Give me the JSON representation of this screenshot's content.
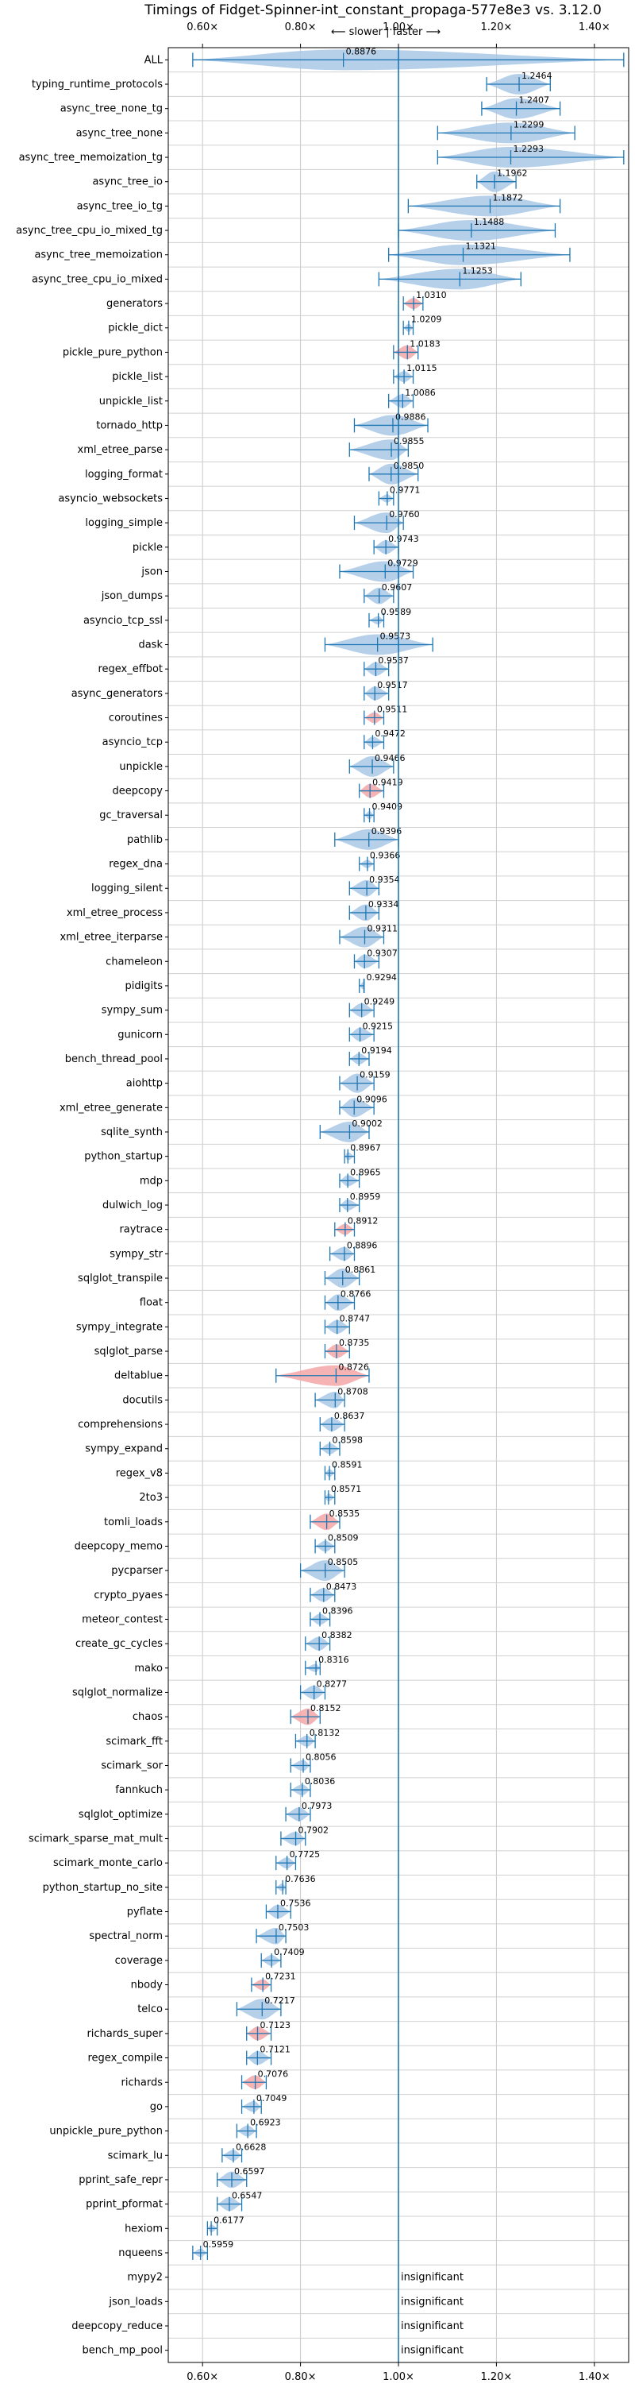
{
  "chart_data": {
    "type": "violin",
    "title": "Timings of Fidget-Spinner-int_constant_propaga-577e8e3 vs. 3.12.0",
    "subtitle": "⟵ slower | faster ⟶",
    "xlim": [
      0.53,
      1.47
    ],
    "x_ticks": [
      0.6,
      0.8,
      1.0,
      1.2,
      1.4
    ],
    "x_tick_labels": [
      "0.60×",
      "0.80×",
      "1.00×",
      "1.20×",
      "1.40×"
    ],
    "reference_line": 1.0,
    "grid": true,
    "colors": {
      "normal": "#a9c8e6",
      "highlight": "#f4a6a6",
      "line": "#1f77b4"
    },
    "categories": [
      "ALL",
      "typing_runtime_protocols",
      "async_tree_none_tg",
      "async_tree_none",
      "async_tree_memoization_tg",
      "async_tree_io",
      "async_tree_io_tg",
      "async_tree_cpu_io_mixed_tg",
      "async_tree_memoization",
      "async_tree_cpu_io_mixed",
      "generators",
      "pickle_dict",
      "pickle_pure_python",
      "pickle_list",
      "unpickle_list",
      "tornado_http",
      "xml_etree_parse",
      "logging_format",
      "asyncio_websockets",
      "logging_simple",
      "pickle",
      "json",
      "json_dumps",
      "asyncio_tcp_ssl",
      "dask",
      "regex_effbot",
      "async_generators",
      "coroutines",
      "asyncio_tcp",
      "unpickle",
      "deepcopy",
      "gc_traversal",
      "pathlib",
      "regex_dna",
      "logging_silent",
      "xml_etree_process",
      "xml_etree_iterparse",
      "chameleon",
      "pidigits",
      "sympy_sum",
      "gunicorn",
      "bench_thread_pool",
      "aiohttp",
      "xml_etree_generate",
      "sqlite_synth",
      "python_startup",
      "mdp",
      "dulwich_log",
      "raytrace",
      "sympy_str",
      "sqlglot_transpile",
      "float",
      "sympy_integrate",
      "sqlglot_parse",
      "deltablue",
      "docutils",
      "comprehensions",
      "sympy_expand",
      "regex_v8",
      "2to3",
      "tomli_loads",
      "deepcopy_memo",
      "pycparser",
      "crypto_pyaes",
      "meteor_contest",
      "create_gc_cycles",
      "mako",
      "sqlglot_normalize",
      "chaos",
      "scimark_fft",
      "scimark_sor",
      "fannkuch",
      "sqlglot_optimize",
      "scimark_sparse_mat_mult",
      "scimark_monte_carlo",
      "python_startup_no_site",
      "pyflate",
      "spectral_norm",
      "coverage",
      "nbody",
      "telco",
      "richards_super",
      "regex_compile",
      "richards",
      "go",
      "unpickle_pure_python",
      "scimark_lu",
      "pprint_safe_repr",
      "pprint_pformat",
      "hexiom",
      "nqueens",
      "mypy2",
      "json_loads",
      "deepcopy_reduce",
      "bench_mp_pool"
    ],
    "values": [
      0.8876,
      1.2464,
      1.2407,
      1.2299,
      1.2293,
      1.1962,
      1.1872,
      1.1488,
      1.1321,
      1.1253,
      1.031,
      1.0209,
      1.0183,
      1.0115,
      1.0086,
      0.9886,
      0.9855,
      0.985,
      0.9771,
      0.976,
      0.9743,
      0.9729,
      0.9607,
      0.9589,
      0.9573,
      0.9537,
      0.9517,
      0.9511,
      0.9472,
      0.9466,
      0.9419,
      0.9409,
      0.9396,
      0.9366,
      0.9354,
      0.9334,
      0.9311,
      0.9307,
      0.9294,
      0.9249,
      0.9215,
      0.9194,
      0.9159,
      0.9096,
      0.9002,
      0.8967,
      0.8965,
      0.8959,
      0.8912,
      0.8896,
      0.8861,
      0.8766,
      0.8747,
      0.8735,
      0.8726,
      0.8708,
      0.8637,
      0.8598,
      0.8591,
      0.8571,
      0.8535,
      0.8509,
      0.8505,
      0.8473,
      0.8396,
      0.8382,
      0.8316,
      0.8277,
      0.8152,
      0.8132,
      0.8056,
      0.8036,
      0.7973,
      0.7902,
      0.7725,
      0.7636,
      0.7536,
      0.7503,
      0.7409,
      0.7231,
      0.7217,
      0.7123,
      0.7121,
      0.7076,
      0.7049,
      0.6923,
      0.6628,
      0.6597,
      0.6547,
      0.6177,
      0.5959,
      null,
      null,
      null,
      null
    ],
    "value_labels": [
      "0.8876",
      "1.2464",
      "1.2407",
      "1.2299",
      "1.2293",
      "1.1962",
      "1.1872",
      "1.1488",
      "1.1321",
      "1.1253",
      "1.0310",
      "1.0209",
      "1.0183",
      "1.0115",
      "1.0086",
      "0.9886",
      "0.9855",
      "0.9850",
      "0.9771",
      "0.9760",
      "0.9743",
      "0.9729",
      "0.9607",
      "0.9589",
      "0.9573",
      "0.9537",
      "0.9517",
      "0.9511",
      "0.9472",
      "0.9466",
      "0.9419",
      "0.9409",
      "0.9396",
      "0.9366",
      "0.9354",
      "0.9334",
      "0.9311",
      "0.9307",
      "0.9294",
      "0.9249",
      "0.9215",
      "0.9194",
      "0.9159",
      "0.9096",
      "0.9002",
      "0.8967",
      "0.8965",
      "0.8959",
      "0.8912",
      "0.8896",
      "0.8861",
      "0.8766",
      "0.8747",
      "0.8735",
      "0.8726",
      "0.8708",
      "0.8637",
      "0.8598",
      "0.8591",
      "0.8571",
      "0.8535",
      "0.8509",
      "0.8505",
      "0.8473",
      "0.8396",
      "0.8382",
      "0.8316",
      "0.8277",
      "0.8152",
      "0.8132",
      "0.8056",
      "0.8036",
      "0.7973",
      "0.7902",
      "0.7725",
      "0.7636",
      "0.7536",
      "0.7503",
      "0.7409",
      "0.7231",
      "0.7217",
      "0.7123",
      "0.7121",
      "0.7076",
      "0.7049",
      "0.6923",
      "0.6628",
      "0.6597",
      "0.6547",
      "0.6177",
      "0.5959",
      "insignificant",
      "insignificant",
      "insignificant",
      "insignificant"
    ],
    "ranges": [
      [
        0.58,
        1.46
      ],
      [
        1.18,
        1.31
      ],
      [
        1.17,
        1.33
      ],
      [
        1.08,
        1.36
      ],
      [
        1.08,
        1.46
      ],
      [
        1.16,
        1.24
      ],
      [
        1.02,
        1.33
      ],
      [
        1.0,
        1.32
      ],
      [
        0.98,
        1.35
      ],
      [
        0.96,
        1.25
      ],
      [
        1.01,
        1.05
      ],
      [
        1.01,
        1.03
      ],
      [
        0.99,
        1.04
      ],
      [
        0.99,
        1.03
      ],
      [
        0.98,
        1.03
      ],
      [
        0.91,
        1.06
      ],
      [
        0.9,
        1.02
      ],
      [
        0.94,
        1.04
      ],
      [
        0.96,
        0.99
      ],
      [
        0.91,
        1.01
      ],
      [
        0.95,
        1.0
      ],
      [
        0.88,
        1.03
      ],
      [
        0.93,
        0.99
      ],
      [
        0.94,
        0.97
      ],
      [
        0.85,
        1.07
      ],
      [
        0.93,
        0.98
      ],
      [
        0.93,
        0.98
      ],
      [
        0.93,
        0.97
      ],
      [
        0.93,
        0.97
      ],
      [
        0.9,
        0.99
      ],
      [
        0.92,
        0.97
      ],
      [
        0.93,
        0.95
      ],
      [
        0.87,
        1.0
      ],
      [
        0.92,
        0.95
      ],
      [
        0.9,
        0.96
      ],
      [
        0.9,
        0.96
      ],
      [
        0.88,
        0.97
      ],
      [
        0.91,
        0.96
      ],
      [
        0.92,
        0.93
      ],
      [
        0.9,
        0.95
      ],
      [
        0.9,
        0.95
      ],
      [
        0.9,
        0.94
      ],
      [
        0.88,
        0.95
      ],
      [
        0.88,
        0.95
      ],
      [
        0.84,
        0.94
      ],
      [
        0.89,
        0.91
      ],
      [
        0.88,
        0.92
      ],
      [
        0.88,
        0.92
      ],
      [
        0.87,
        0.91
      ],
      [
        0.86,
        0.91
      ],
      [
        0.85,
        0.92
      ],
      [
        0.85,
        0.91
      ],
      [
        0.85,
        0.9
      ],
      [
        0.85,
        0.9
      ],
      [
        0.75,
        0.94
      ],
      [
        0.83,
        0.89
      ],
      [
        0.84,
        0.89
      ],
      [
        0.84,
        0.88
      ],
      [
        0.85,
        0.87
      ],
      [
        0.85,
        0.87
      ],
      [
        0.82,
        0.88
      ],
      [
        0.83,
        0.87
      ],
      [
        0.8,
        0.89
      ],
      [
        0.82,
        0.87
      ],
      [
        0.82,
        0.86
      ],
      [
        0.81,
        0.86
      ],
      [
        0.81,
        0.84
      ],
      [
        0.8,
        0.85
      ],
      [
        0.78,
        0.84
      ],
      [
        0.79,
        0.83
      ],
      [
        0.78,
        0.82
      ],
      [
        0.78,
        0.82
      ],
      [
        0.77,
        0.82
      ],
      [
        0.76,
        0.81
      ],
      [
        0.75,
        0.79
      ],
      [
        0.75,
        0.77
      ],
      [
        0.73,
        0.78
      ],
      [
        0.71,
        0.77
      ],
      [
        0.72,
        0.76
      ],
      [
        0.7,
        0.74
      ],
      [
        0.67,
        0.76
      ],
      [
        0.69,
        0.74
      ],
      [
        0.69,
        0.74
      ],
      [
        0.68,
        0.73
      ],
      [
        0.68,
        0.72
      ],
      [
        0.67,
        0.71
      ],
      [
        0.64,
        0.68
      ],
      [
        0.63,
        0.69
      ],
      [
        0.63,
        0.68
      ],
      [
        0.61,
        0.63
      ],
      [
        0.58,
        0.61
      ],
      null,
      null,
      null,
      null
    ],
    "highlight": [
      "generators",
      "pickle_pure_python",
      "coroutines",
      "deepcopy",
      "raytrace",
      "sqlglot_parse",
      "deltablue",
      "tomli_loads",
      "chaos",
      "nbody",
      "richards_super",
      "richards"
    ]
  }
}
